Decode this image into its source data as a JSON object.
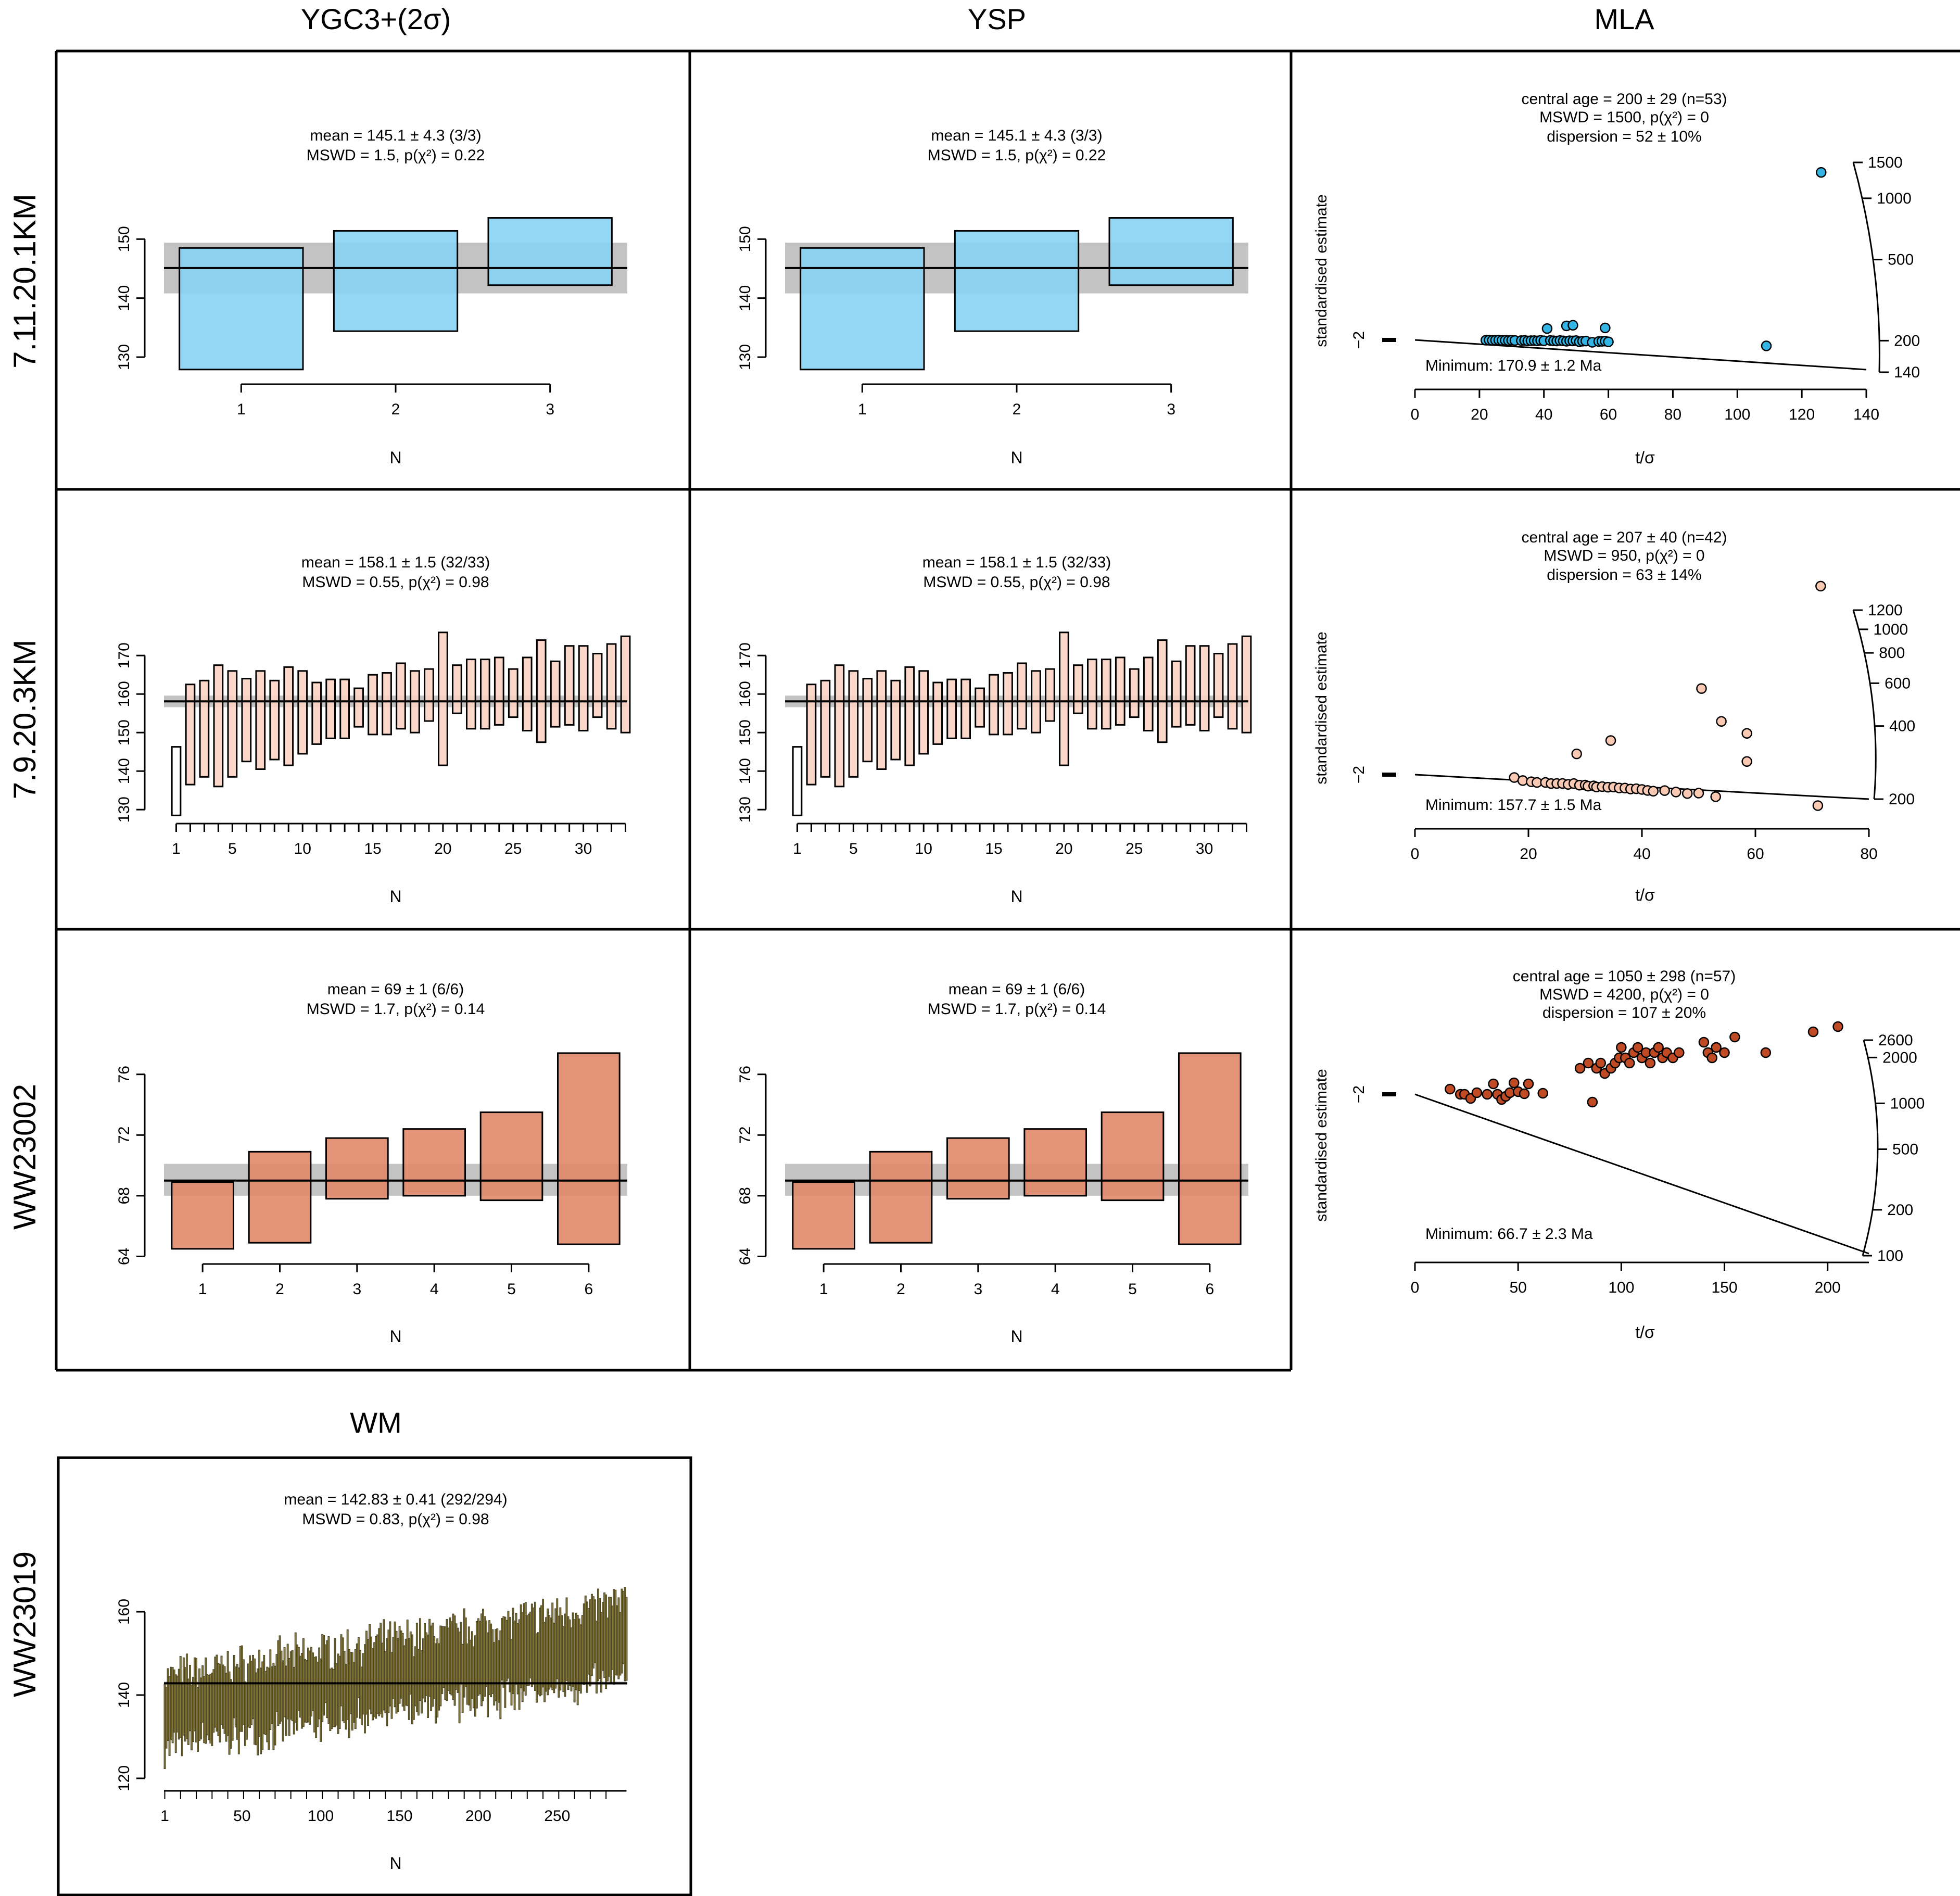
{
  "colors": {
    "blue": "#87d3f3",
    "blue_dot": "#35b4e6",
    "peach": "#f9d3c2",
    "salmon": "#e0886a",
    "rust": "#bf4a24",
    "olive": "#8a7d3a",
    "band": "#c3c3c3",
    "line": "#000000"
  },
  "columns": {
    "c1": "YGC3+(2σ)",
    "c2": "YSP",
    "c3": "MLA",
    "c4": "WM"
  },
  "rows": {
    "r1": "7.11.20.1KM",
    "r2": "7.9.20.3KM",
    "r3": "WW23002",
    "r4": "WW23019"
  },
  "chart_data": [
    {
      "id": "r1_ygc",
      "type": "weighted_mean",
      "row": "7.11.20.1KM",
      "column": "YGC3+(2σ)",
      "xlabel": "N",
      "ylim": [
        127,
        157
      ],
      "yticks": [
        130,
        140,
        150
      ],
      "xticks": [
        1,
        2,
        3
      ],
      "annotation": [
        "mean = 145.1 ± 4.3 (3/3)",
        "MSWD = 1.5, p(χ²) = 0.22"
      ],
      "mean": 145.1,
      "band": [
        140.8,
        149.4
      ],
      "fill": "#87d3f3",
      "boxes": [
        [
          127.9,
          148.5
        ],
        [
          134.4,
          151.4
        ],
        [
          142.2,
          153.6
        ]
      ]
    },
    {
      "id": "r1_ysp",
      "type": "weighted_mean",
      "row": "7.11.20.1KM",
      "column": "YSP",
      "xlabel": "N",
      "ylim": [
        127,
        157
      ],
      "yticks": [
        130,
        140,
        150
      ],
      "xticks": [
        1,
        2,
        3
      ],
      "annotation": [
        "mean = 145.1 ± 4.3 (3/3)",
        "MSWD = 1.5, p(χ²) = 0.22"
      ],
      "mean": 145.1,
      "band": [
        140.8,
        149.4
      ],
      "fill": "#87d3f3",
      "boxes": [
        [
          127.9,
          148.5
        ],
        [
          134.4,
          151.4
        ],
        [
          142.2,
          153.6
        ]
      ]
    },
    {
      "id": "r1_mla",
      "type": "radial",
      "row": "7.11.20.1KM",
      "column": "MLA",
      "xlabel": "t/σ",
      "ylabel": "standardised estimate",
      "xlim": [
        0,
        140
      ],
      "xticks": [
        0,
        20,
        40,
        60,
        80,
        100,
        120,
        140
      ],
      "arc_ticks": [
        140,
        200,
        500,
        1000,
        1500
      ],
      "annotation": [
        "central age = 200 ± 29 (n=53)",
        "MSWD = 1500, p(χ²) = 0",
        "dispersion = 52 ± 10%"
      ],
      "minimum_label": "Minimum: 170.9 ± 1.2 Ma",
      "point_fill": "#35b4e6",
      "points": [
        [
          22,
          198
        ],
        [
          23,
          200
        ],
        [
          24,
          197
        ],
        [
          25,
          199
        ],
        [
          26,
          201
        ],
        [
          27,
          197
        ],
        [
          28,
          198
        ],
        [
          29,
          196
        ],
        [
          30,
          199
        ],
        [
          31,
          197
        ],
        [
          33,
          196
        ],
        [
          34,
          198
        ],
        [
          35,
          194
        ],
        [
          36,
          196
        ],
        [
          37,
          197
        ],
        [
          38,
          195
        ],
        [
          39,
          199
        ],
        [
          40,
          196
        ],
        [
          42,
          198
        ],
        [
          43,
          196
        ],
        [
          44,
          195
        ],
        [
          45,
          198
        ],
        [
          46,
          196
        ],
        [
          47,
          194
        ],
        [
          48,
          197
        ],
        [
          49,
          196
        ],
        [
          50,
          198
        ],
        [
          51,
          192
        ],
        [
          52,
          195
        ],
        [
          53,
          196
        ],
        [
          55,
          190
        ],
        [
          57,
          194
        ],
        [
          58,
          195
        ],
        [
          59,
          196
        ],
        [
          60,
          193
        ],
        [
          41,
          297
        ],
        [
          47,
          306
        ],
        [
          49,
          306
        ],
        [
          59,
          268
        ],
        [
          109,
          187
        ],
        [
          126,
          1340
        ]
      ]
    },
    {
      "id": "r2_ygc",
      "type": "weighted_mean",
      "row": "7.9.20.3KM",
      "column": "YGC3+(2σ)",
      "xlabel": "N",
      "ylim": [
        128,
        178
      ],
      "yticks": [
        130,
        140,
        150,
        160,
        170
      ],
      "xticks": [
        1,
        5,
        10,
        15,
        20,
        25,
        30
      ],
      "n_minor": 33,
      "annotation": [
        "mean = 158.1 ± 1.5 (32/33)",
        "MSWD = 0.55, p(χ²) = 0.98"
      ],
      "mean": 158.1,
      "band": [
        156.6,
        159.6
      ],
      "fill": "#f9d3c2",
      "boxes": [
        [
          128.5,
          146.3
        ],
        [
          136.5,
          162.5
        ],
        [
          138.5,
          163.5
        ],
        [
          136.0,
          167.5
        ],
        [
          138.5,
          166.0
        ],
        [
          142.5,
          164.0
        ],
        [
          140.5,
          166.0
        ],
        [
          143.0,
          163.5
        ],
        [
          141.5,
          167.0
        ],
        [
          144.5,
          166.0
        ],
        [
          147.0,
          163.0
        ],
        [
          148.5,
          163.8
        ],
        [
          148.5,
          163.8
        ],
        [
          151.5,
          161.5
        ],
        [
          149.5,
          165.0
        ],
        [
          149.5,
          165.5
        ],
        [
          151.0,
          168.0
        ],
        [
          150.0,
          166.0
        ],
        [
          153.0,
          166.5
        ],
        [
          141.5,
          176.0
        ],
        [
          155.0,
          167.5
        ],
        [
          151.0,
          169.0
        ],
        [
          151.0,
          169.0
        ],
        [
          152.0,
          169.5
        ],
        [
          154.0,
          166.5
        ],
        [
          150.5,
          169.5
        ],
        [
          147.5,
          174.0
        ],
        [
          151.5,
          168.5
        ],
        [
          152.0,
          172.5
        ],
        [
          150.5,
          172.5
        ],
        [
          154.0,
          170.5
        ],
        [
          151.0,
          173.0
        ],
        [
          150.0,
          175.0
        ]
      ]
    },
    {
      "id": "r2_ysp",
      "type": "weighted_mean",
      "row": "7.9.20.3KM",
      "column": "YSP",
      "xlabel": "N",
      "ylim": [
        128,
        178
      ],
      "yticks": [
        130,
        140,
        150,
        160,
        170
      ],
      "xticks": [
        1,
        5,
        10,
        15,
        20,
        25,
        30
      ],
      "n_minor": 33,
      "annotation": [
        "mean = 158.1 ± 1.5 (32/33)",
        "MSWD = 0.55, p(χ²) = 0.98"
      ],
      "mean": 158.1,
      "band": [
        156.6,
        159.6
      ],
      "fill": "#f9d3c2",
      "boxes": [
        [
          128.5,
          146.3
        ],
        [
          136.5,
          162.5
        ],
        [
          138.5,
          163.5
        ],
        [
          136.0,
          167.5
        ],
        [
          138.5,
          166.0
        ],
        [
          142.5,
          164.0
        ],
        [
          140.5,
          166.0
        ],
        [
          143.0,
          163.5
        ],
        [
          141.5,
          167.0
        ],
        [
          144.5,
          166.0
        ],
        [
          147.0,
          163.0
        ],
        [
          148.5,
          163.8
        ],
        [
          148.5,
          163.8
        ],
        [
          151.5,
          161.5
        ],
        [
          149.5,
          165.0
        ],
        [
          149.5,
          165.5
        ],
        [
          151.0,
          168.0
        ],
        [
          150.0,
          166.0
        ],
        [
          153.0,
          166.5
        ],
        [
          141.5,
          176.0
        ],
        [
          155.0,
          167.5
        ],
        [
          151.0,
          169.0
        ],
        [
          151.0,
          169.0
        ],
        [
          152.0,
          169.5
        ],
        [
          154.0,
          166.5
        ],
        [
          150.5,
          169.5
        ],
        [
          147.5,
          174.0
        ],
        [
          151.5,
          168.5
        ],
        [
          152.0,
          172.5
        ],
        [
          150.5,
          172.5
        ],
        [
          154.0,
          170.5
        ],
        [
          151.0,
          173.0
        ],
        [
          150.0,
          175.0
        ]
      ]
    },
    {
      "id": "r2_mla",
      "type": "radial",
      "row": "7.9.20.3KM",
      "column": "MLA",
      "xlabel": "t/σ",
      "ylabel": "standardised estimate",
      "xlim": [
        0,
        80
      ],
      "xticks": [
        0,
        20,
        40,
        60,
        80
      ],
      "arc_ticks": [
        200,
        400,
        600,
        800,
        1000,
        1200
      ],
      "annotation": [
        "central age = 207 ± 40 (n=42)",
        "MSWD = 950, p(χ²) = 0",
        "dispersion = 63 ± 14%"
      ],
      "minimum_label": "Minimum: 157.7 ± 1.5 Ma",
      "point_fill": "#f9c9b4",
      "points": [
        [
          17.5,
          226
        ],
        [
          19,
          205
        ],
        [
          20.5,
          200
        ],
        [
          21.5,
          198
        ],
        [
          23,
          201
        ],
        [
          24,
          197
        ],
        [
          25,
          199
        ],
        [
          26,
          201
        ],
        [
          27,
          198
        ],
        [
          28,
          204
        ],
        [
          29,
          198
        ],
        [
          30,
          200
        ],
        [
          30.5,
          196
        ],
        [
          31.5,
          199
        ],
        [
          32,
          195
        ],
        [
          33,
          198
        ],
        [
          34,
          197
        ],
        [
          35,
          199
        ],
        [
          36,
          197
        ],
        [
          37,
          198
        ],
        [
          38,
          196
        ],
        [
          39,
          198
        ],
        [
          40,
          197
        ],
        [
          41,
          195
        ],
        [
          42,
          194
        ],
        [
          44,
          198
        ],
        [
          46,
          196
        ],
        [
          48,
          194
        ],
        [
          50,
          197
        ],
        [
          53,
          191
        ],
        [
          71,
          188
        ],
        [
          28.5,
          410
        ],
        [
          34.5,
          488
        ],
        [
          50.5,
          787
        ],
        [
          54,
          487
        ],
        [
          58.5,
          404
        ],
        [
          58.5,
          293
        ],
        [
          71.5,
          1507
        ]
      ]
    },
    {
      "id": "r3_ygc",
      "type": "weighted_mean",
      "row": "WW23002",
      "column": "YGC3+(2σ)",
      "xlabel": "N",
      "ylim": [
        63.5,
        77.5
      ],
      "yticks": [
        64,
        68,
        72,
        76
      ],
      "xticks": [
        1,
        2,
        3,
        4,
        5,
        6
      ],
      "annotation": [
        "mean = 69 ± 1 (6/6)",
        "MSWD = 1.7, p(χ²) = 0.14"
      ],
      "mean": 69.0,
      "band": [
        68.0,
        70.1
      ],
      "fill": "#e0886a",
      "boxes": [
        [
          64.5,
          68.9
        ],
        [
          64.9,
          70.9
        ],
        [
          67.8,
          71.8
        ],
        [
          68.0,
          72.4
        ],
        [
          67.7,
          73.5
        ],
        [
          64.8,
          77.4
        ]
      ]
    },
    {
      "id": "r3_ysp",
      "type": "weighted_mean",
      "row": "WW23002",
      "column": "YSP",
      "xlabel": "N",
      "ylim": [
        63.5,
        77.5
      ],
      "yticks": [
        64,
        68,
        72,
        76
      ],
      "xticks": [
        1,
        2,
        3,
        4,
        5,
        6
      ],
      "annotation": [
        "mean = 69 ± 1 (6/6)",
        "MSWD = 1.7, p(χ²) = 0.14"
      ],
      "mean": 69.0,
      "band": [
        68.0,
        70.1
      ],
      "fill": "#e0886a",
      "boxes": [
        [
          64.5,
          68.9
        ],
        [
          64.9,
          70.9
        ],
        [
          67.8,
          71.8
        ],
        [
          68.0,
          72.4
        ],
        [
          67.7,
          73.5
        ],
        [
          64.8,
          77.4
        ]
      ]
    },
    {
      "id": "r3_mla",
      "type": "radial",
      "row": "WW23002",
      "column": "MLA",
      "xlabel": "t/σ",
      "ylabel": "standardised estimate",
      "xlim": [
        0,
        220
      ],
      "xticks": [
        0,
        50,
        100,
        150,
        200
      ],
      "arc_ticks": [
        100,
        200,
        500,
        1000,
        2000,
        2600
      ],
      "annotation": [
        "central age = 1050 ± 298 (n=57)",
        "MSWD = 4200, p(χ²) = 0",
        "dispersion = 107 ± 20%"
      ],
      "minimum_label": "Minimum: 66.7 ± 2.3 Ma",
      "point_fill": "#bf4a24",
      "points": [
        [
          17,
          1.1
        ],
        [
          22,
          1.0
        ],
        [
          24,
          1.0
        ],
        [
          27,
          0.92
        ],
        [
          30,
          1.03
        ],
        [
          35,
          1.0
        ],
        [
          38,
          1.2
        ],
        [
          40,
          1.0
        ],
        [
          42,
          0.9
        ],
        [
          44,
          0.96
        ],
        [
          46,
          1.03
        ],
        [
          48,
          1.22
        ],
        [
          50,
          1.05
        ],
        [
          53,
          1.01
        ],
        [
          55,
          1.2
        ],
        [
          62,
          1.02
        ],
        [
          80,
          1.5
        ],
        [
          84,
          1.6
        ],
        [
          86,
          0.85
        ],
        [
          88,
          1.5
        ],
        [
          90,
          1.6
        ],
        [
          92,
          1.4
        ],
        [
          95,
          1.5
        ],
        [
          97,
          1.6
        ],
        [
          99,
          1.7
        ],
        [
          100,
          1.9
        ],
        [
          102,
          1.7
        ],
        [
          104,
          1.6
        ],
        [
          106,
          1.8
        ],
        [
          108,
          1.9
        ],
        [
          110,
          1.7
        ],
        [
          112,
          1.8
        ],
        [
          114,
          1.6
        ],
        [
          116,
          1.8
        ],
        [
          118,
          1.9
        ],
        [
          120,
          1.7
        ],
        [
          122,
          1.8
        ],
        [
          125,
          1.7
        ],
        [
          128,
          1.8
        ],
        [
          140,
          2.0
        ],
        [
          142,
          1.8
        ],
        [
          144,
          1.7
        ],
        [
          146,
          1.9
        ],
        [
          150,
          1.8
        ],
        [
          155,
          2.1
        ],
        [
          170,
          1.8
        ],
        [
          193,
          2.2
        ],
        [
          205,
          2.3
        ]
      ]
    },
    {
      "id": "r4_wm",
      "type": "weighted_mean",
      "row": "WW23019",
      "column": "WM",
      "xlabel": "N",
      "ylim": [
        117,
        172
      ],
      "yticks": [
        120,
        140,
        160
      ],
      "xticks": [
        1,
        50,
        100,
        150,
        200,
        250
      ],
      "n_minor": 294,
      "annotation": [
        "mean = 142.83 ± 0.41 (292/294)",
        "MSWD = 0.83, p(χ²) = 0.98"
      ],
      "mean": 142.83,
      "band": [
        142.42,
        143.24
      ],
      "fill": "#8a7d3a",
      "trend": {
        "n": 294,
        "start": 136,
        "end": 153,
        "half_width_start": 8.5,
        "half_width_end": 9.5,
        "seed": 7
      }
    }
  ]
}
